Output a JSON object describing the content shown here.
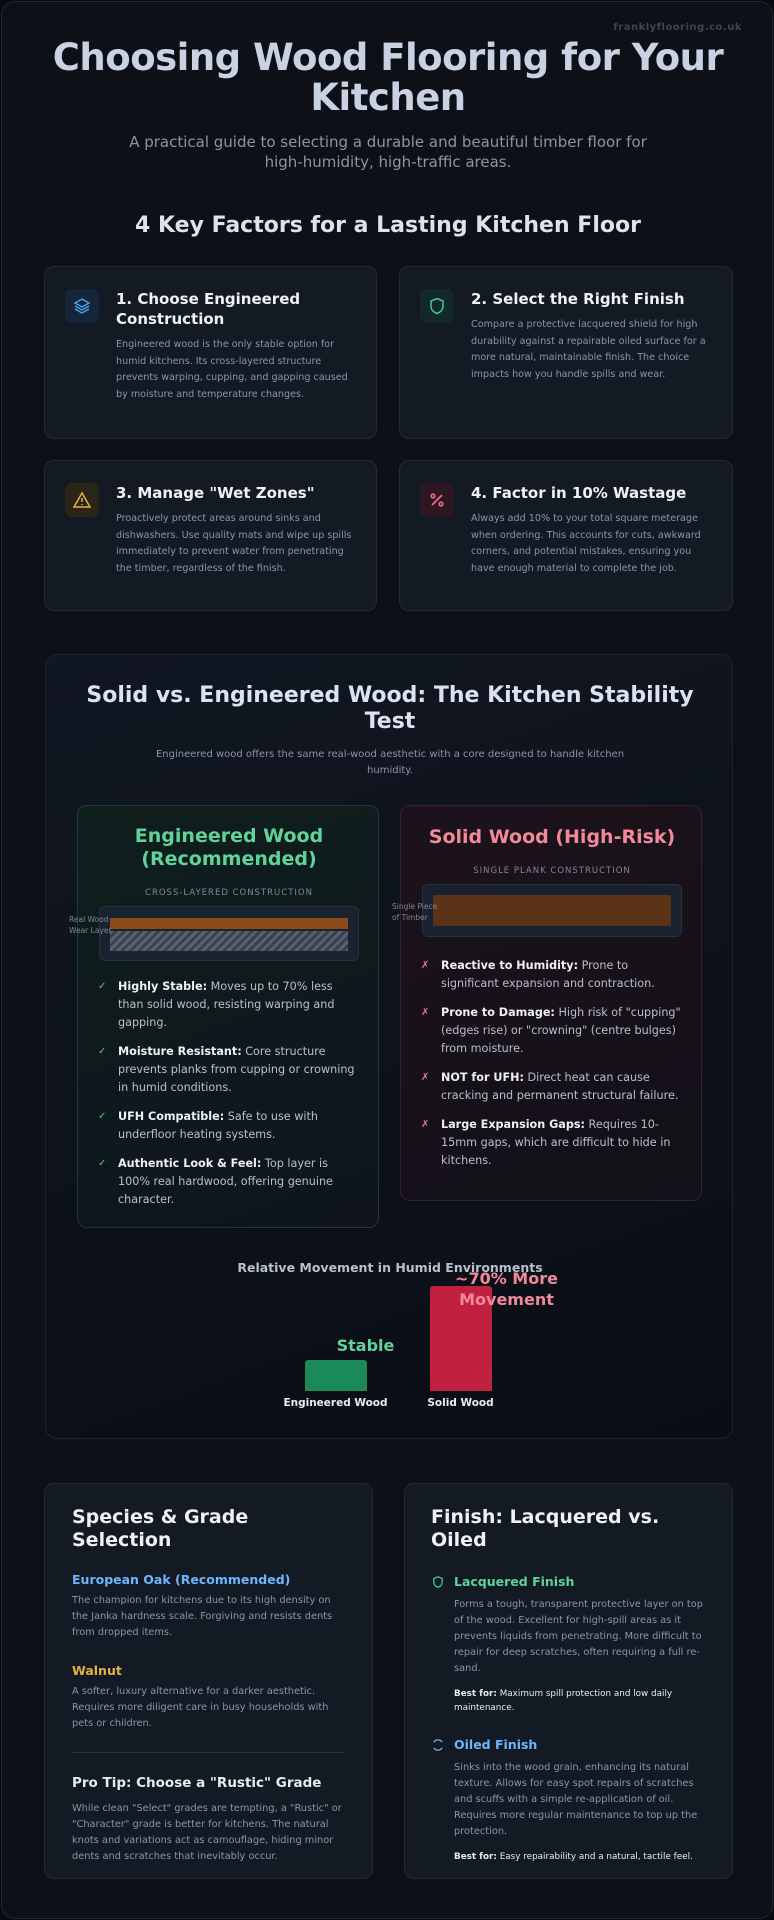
{
  "header": {
    "site": "franklyflooring.co.uk",
    "title": "Choosing Wood Flooring for Your Kitchen",
    "subtitle": "A practical guide to selecting a durable and beautiful timber floor for high-humidity, high-traffic areas."
  },
  "factors": {
    "title": "4 Key Factors for a Lasting Kitchen Floor",
    "cards": [
      {
        "title": "1. Choose Engineered Construction",
        "text": "Engineered wood is the only stable option for humid kitchens. Its cross-layered structure prevents warping, cupping, and gapping caused by moisture and temperature changes."
      },
      {
        "title": "2. Select the Right Finish",
        "text": "Compare a protective lacquered shield for high durability against a repairable oiled surface for a more natural, maintainable finish. The choice impacts how you handle spills and wear."
      },
      {
        "title": "3. Manage \"Wet Zones\"",
        "text": "Proactively protect areas around sinks and dishwashers. Use quality mats and wipe up spills immediately to prevent water from penetrating the timber, regardless of the finish."
      },
      {
        "title": "4. Factor in 10% Wastage",
        "text": "Always add 10% to your total square meterage when ordering. This accounts for cuts, awkward corners, and potential mistakes, ensuring you have enough material to complete the job."
      }
    ]
  },
  "comparison": {
    "title": "Solid vs. Engineered Wood: The Kitchen Stability Test",
    "subtitle": "Engineered wood offers the same real-wood aesthetic with a core designed to handle kitchen humidity.",
    "engineered": {
      "title": "Engineered Wood (Recommended)",
      "diagram_label": "CROSS-LAYERED CONSTRUCTION",
      "layer_label": "Real Wood Wear Layer",
      "items": [
        {
          "label": "Highly Stable:",
          "text": "Moves up to 70% less than solid wood, resisting warping and gapping."
        },
        {
          "label": "Moisture Resistant:",
          "text": "Core structure prevents planks from cupping or crowning in humid conditions."
        },
        {
          "label": "UFH Compatible:",
          "text": "Safe to use with underfloor heating systems."
        },
        {
          "label": "Authentic Look & Feel:",
          "text": "Top layer is 100% real hardwood, offering genuine character."
        }
      ]
    },
    "solid": {
      "title": "Solid Wood (High-Risk)",
      "diagram_label": "SINGLE PLANK CONSTRUCTION",
      "layer_label": "Single Piece of Timber",
      "items": [
        {
          "label": "Reactive to Humidity:",
          "text": "Prone to significant expansion and contraction."
        },
        {
          "label": "Prone to Damage:",
          "text": "High risk of \"cupping\" (edges rise) or \"crowning\" (centre bulges) from moisture."
        },
        {
          "label": "NOT for UFH:",
          "text": "Direct heat can cause cracking and permanent structural failure."
        },
        {
          "label": "Large Expansion Gaps:",
          "text": "Requires 10-15mm gaps, which are difficult to hide in kitchens."
        }
      ]
    },
    "chart": {
      "type": "bar",
      "title": "Relative Movement in Humid Environments",
      "categories": [
        "Engineered Wood",
        "Solid Wood"
      ],
      "values": [
        30,
        100
      ],
      "colors": [
        "#1a8a5a",
        "#c0213f"
      ],
      "ylim": [
        0,
        100
      ],
      "annotations": [
        "Stable",
        "~70% More Movement"
      ]
    }
  },
  "species": {
    "title": "Species & Grade Selection",
    "items": [
      {
        "name": "European Oak (Recommended)",
        "text": "The champion for kitchens due to its high density on the Janka hardness scale. Forgiving and resists dents from dropped items."
      },
      {
        "name": "Walnut",
        "text": "A softer, luxury alternative for a darker aesthetic. Requires more diligent care in busy households with pets or children."
      }
    ],
    "tip": {
      "title": "Pro Tip: Choose a \"Rustic\" Grade",
      "text": "While clean \"Select\" grades are tempting, a \"Rustic\" or \"Character\" grade is better for kitchens. The natural knots and variations act as camouflage, hiding minor dents and scratches that inevitably occur."
    }
  },
  "finish": {
    "title": "Finish: Lacquered vs. Oiled",
    "items": [
      {
        "name": "Lacquered Finish",
        "text": "Forms a tough, transparent protective layer on top of the wood. Excellent for high-spill areas as it prevents liquids from penetrating. More difficult to repair for deep scratches, often requiring a full re-sand.",
        "best_label": "Best for:",
        "best_text": "Maximum spill protection and low daily maintenance."
      },
      {
        "name": "Oiled Finish",
        "text": "Sinks into the wood grain, enhancing its natural texture. Allows for easy spot repairs of scratches and scuffs with a simple re-application of oil. Requires more regular maintenance to top up the protection.",
        "best_label": "Best for:",
        "best_text": "Easy repairability and a natural, tactile feel."
      }
    ]
  }
}
